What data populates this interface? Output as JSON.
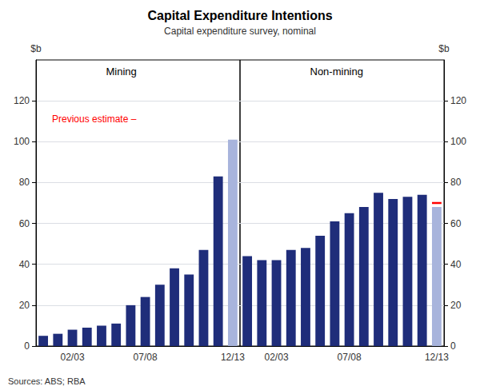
{
  "chart_data": {
    "type": "bar",
    "title": "Capital Expenditure Intentions",
    "subtitle": "Capital expenditure survey, nominal",
    "source": "Sources: ABS; RBA",
    "ylabel": "$b",
    "y2label": "$b",
    "ylim": [
      0,
      140
    ],
    "yticks": [
      0,
      20,
      40,
      60,
      80,
      100,
      120
    ],
    "y2lim": [
      0,
      140
    ],
    "y2ticks": [
      0,
      20,
      40,
      60,
      80,
      100,
      120
    ],
    "grid": true,
    "annotation": "Previous estimate –",
    "annotation_color": "#FF0000",
    "panels": [
      {
        "title": "Mining",
        "categories": [
          null,
          null,
          "02/03",
          null,
          null,
          null,
          null,
          "07/08",
          null,
          null,
          null,
          null,
          null,
          "12/13"
        ],
        "values": [
          5,
          6,
          8,
          9,
          10,
          11,
          20,
          24,
          30,
          38,
          35,
          47,
          83,
          101
        ],
        "colors": [
          "#1F2D7A",
          "#1F2D7A",
          "#1F2D7A",
          "#1F2D7A",
          "#1F2D7A",
          "#1F2D7A",
          "#1F2D7A",
          "#1F2D7A",
          "#1F2D7A",
          "#1F2D7A",
          "#1F2D7A",
          "#1F2D7A",
          "#1F2D7A",
          "#A8B4DC"
        ]
      },
      {
        "title": "Non-mining",
        "categories": [
          null,
          null,
          "02/03",
          null,
          null,
          null,
          null,
          "07/08",
          null,
          null,
          null,
          null,
          null,
          "12/13"
        ],
        "values": [
          44,
          42,
          42,
          47,
          48,
          54,
          61,
          65,
          68,
          75,
          72,
          73,
          74,
          68
        ],
        "colors": [
          "#1F2D7A",
          "#1F2D7A",
          "#1F2D7A",
          "#1F2D7A",
          "#1F2D7A",
          "#1F2D7A",
          "#1F2D7A",
          "#1F2D7A",
          "#1F2D7A",
          "#1F2D7A",
          "#1F2D7A",
          "#1F2D7A",
          "#1F2D7A",
          "#A8B4DC"
        ],
        "marker_values": [
          null,
          null,
          null,
          null,
          null,
          null,
          null,
          null,
          null,
          null,
          null,
          null,
          null,
          70
        ],
        "marker_color": "#FF0000"
      }
    ]
  }
}
